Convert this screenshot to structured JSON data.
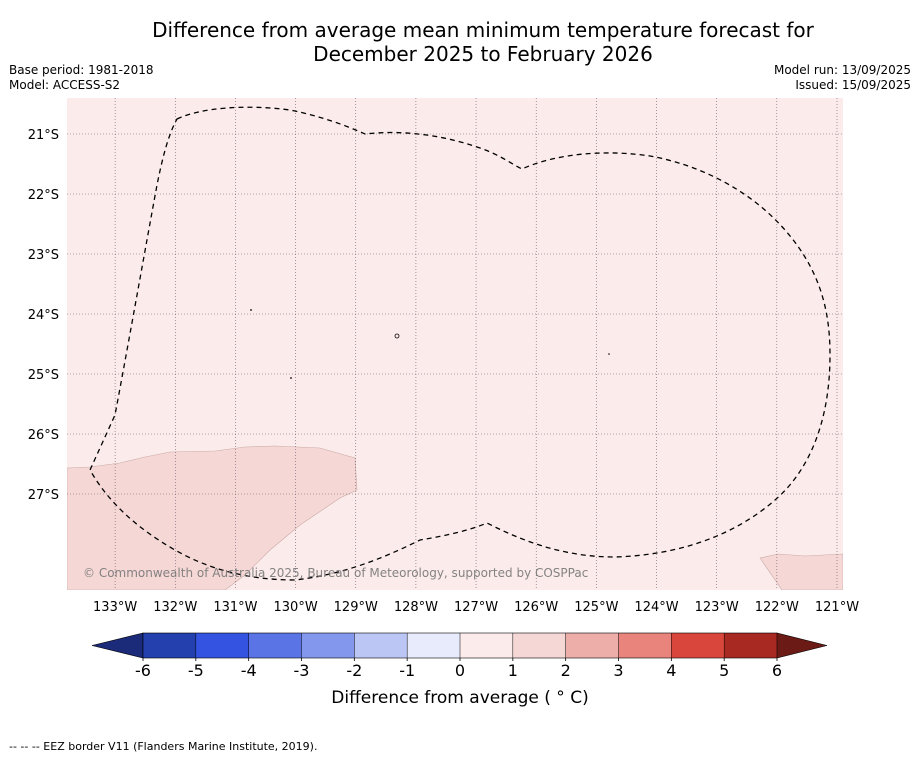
{
  "header": {
    "title_line1": "Difference from average mean minimum temperature forecast for",
    "title_line2": "December 2025 to February 2026",
    "base_period": "Base period: 1981-2018",
    "model": "Model: ACCESS-S2",
    "model_run": "Model run: 13/09/2025",
    "issued": "Issued: 15/09/2025"
  },
  "map": {
    "lat_labels": [
      "21°S",
      "22°S",
      "23°S",
      "24°S",
      "25°S",
      "26°S",
      "27°S"
    ],
    "lat_values": [
      -21,
      -22,
      -23,
      -24,
      -25,
      -26,
      -27
    ],
    "lon_labels": [
      "133°W",
      "132°W",
      "131°W",
      "130°W",
      "129°W",
      "128°W",
      "127°W",
      "126°W",
      "125°W",
      "124°W",
      "123°W",
      "122°W",
      "121°W"
    ],
    "lon_values": [
      -133,
      -132,
      -131,
      -130,
      -129,
      -128,
      -127,
      -126,
      -125,
      -124,
      -123,
      -122,
      -121
    ],
    "extent": {
      "lon_min": -133.8,
      "lon_max": -120.9,
      "lat_min": -28.6,
      "lat_max": -20.4
    },
    "background_category": "0 to 1",
    "background_color": "#fbeceb",
    "patch_category": "1 to 2",
    "patch_color": "#f5d8d6",
    "copyright": "© Commonwealth of Australia 2025, Bureau of Meteorology, supported by COSPPac",
    "eez_line_style": "dashed black"
  },
  "colorbar": {
    "ticks": [
      "-6",
      "-5",
      "-4",
      "-3",
      "-2",
      "-1",
      "0",
      "1",
      "2",
      "3",
      "4",
      "5",
      "6"
    ],
    "colors": [
      "#2440ae",
      "#3353e0",
      "#5a74e6",
      "#8398ec",
      "#bcc6f4",
      "#e8ebfb",
      "#fbeceb",
      "#f5d8d6",
      "#edaea9",
      "#e8847c",
      "#d9473c",
      "#a82922"
    ],
    "under_color": "#1c2a7a",
    "over_color": "#6b1a16",
    "label": "Difference from average ( ° C)"
  },
  "footnote": "--  --  -- EEZ border V11 (Flanders Marine Institute, 2019)."
}
